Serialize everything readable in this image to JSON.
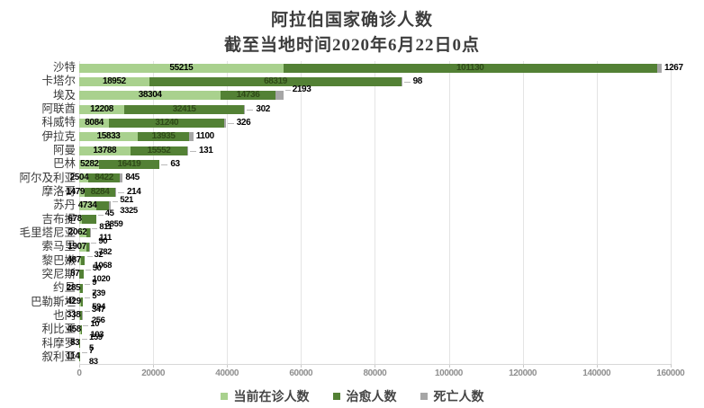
{
  "title": {
    "line1": "阿拉伯国家确诊人数",
    "line2": "截至当地时间2020年6月22日0点"
  },
  "chart_data": {
    "type": "bar",
    "orientation": "horizontal",
    "stacked": true,
    "grid": true,
    "legend_position": "bottom",
    "x_axis": {
      "ticks": [
        0,
        20000,
        40000,
        60000,
        80000,
        100000,
        120000,
        140000,
        160000
      ],
      "max": 160000
    },
    "series_names": [
      "当前在诊人数",
      "治愈人数",
      "死亡人数"
    ],
    "colors": {
      "active": "#A9D18E",
      "cured": "#538135",
      "deaths": "#A6A6A6"
    },
    "legend": [
      {
        "label": "当前在诊人数",
        "color": "#A9D18E"
      },
      {
        "label": "治愈人数",
        "color": "#538135"
      },
      {
        "label": "死亡人数",
        "color": "#A6A6A6"
      }
    ],
    "rows": [
      {
        "country": "沙特",
        "active": 55215,
        "cured": 101130,
        "deaths": 1267,
        "layout": "inside"
      },
      {
        "country": "卡塔尔",
        "active": 18952,
        "cured": 68319,
        "deaths": 98,
        "layout": "inside",
        "deaths_dash": true
      },
      {
        "country": "埃及",
        "active": 38304,
        "cured": 14736,
        "deaths": 2193,
        "layout": "inside",
        "raise_deaths": true
      },
      {
        "country": "阿联酋",
        "active": 12208,
        "cured": 32415,
        "deaths": 302,
        "layout": "inside",
        "deaths_dash": true
      },
      {
        "country": "科威特",
        "active": 8084,
        "cured": 31240,
        "deaths": 326,
        "layout": "inside",
        "deaths_dash": true
      },
      {
        "country": "伊拉克",
        "active": 15833,
        "cured": 13935,
        "deaths": 1100,
        "layout": "inside"
      },
      {
        "country": "阿曼",
        "active": 13788,
        "cured": 15552,
        "deaths": 131,
        "layout": "inside",
        "deaths_dash": true
      },
      {
        "country": "巴林",
        "active": 5282,
        "cured": 16419,
        "deaths": 63,
        "layout": "inside",
        "deaths_dash": true
      },
      {
        "country": "阿尔及利亚",
        "active": 2504,
        "cured": 8422,
        "deaths": 845,
        "layout": "inside"
      },
      {
        "country": "摩洛哥",
        "active": 1479,
        "cured": 8284,
        "deaths": 214,
        "layout": "inside",
        "deaths_dash": true
      },
      {
        "country": "苏丹",
        "active": 4734,
        "cured": 3325,
        "deaths": 521,
        "layout": "callout",
        "top": "deaths"
      },
      {
        "country": "吉布提",
        "active": 678,
        "cured": 3859,
        "deaths": 45,
        "layout": "callout",
        "top": "deaths"
      },
      {
        "country": "毛里塔尼亚",
        "active": 2062,
        "cured": 811,
        "deaths": 111,
        "layout": "callout",
        "top": "cured"
      },
      {
        "country": "索马里",
        "active": 1907,
        "cured": 782,
        "deaths": 90,
        "layout": "callout",
        "top": "deaths"
      },
      {
        "country": "黎巴嫩",
        "active": 487,
        "cured": 1068,
        "deaths": 32,
        "layout": "callout",
        "top": "deaths"
      },
      {
        "country": "突尼斯",
        "active": 87,
        "cured": 1020,
        "deaths": 50,
        "layout": "callout",
        "top": "deaths"
      },
      {
        "country": "约旦",
        "active": 285,
        "cured": 739,
        "deaths": 9,
        "layout": "callout",
        "top": "deaths"
      },
      {
        "country": "巴勒斯坦",
        "active": 429,
        "cured": 594,
        "deaths": 5,
        "layout": "callout",
        "top": "deaths"
      },
      {
        "country": "也门",
        "active": 338,
        "cured": 347,
        "deaths": 256,
        "layout": "callout",
        "top": "cured"
      },
      {
        "country": "利比亚",
        "active": 458,
        "cured": 103,
        "deaths": 10,
        "layout": "callout",
        "top": "deaths"
      },
      {
        "country": "科摩罗",
        "active": 83,
        "cured": 159,
        "deaths": 5,
        "layout": "callout",
        "top": "cured"
      },
      {
        "country": "叙利亚",
        "active": 114,
        "cured": 83,
        "deaths": 7,
        "layout": "callout",
        "top": "deaths"
      }
    ]
  }
}
